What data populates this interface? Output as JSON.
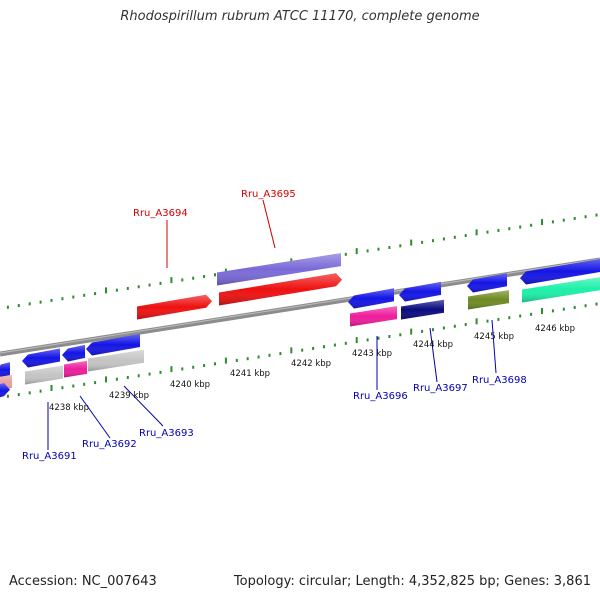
{
  "title": "Rhodospirillum rubrum ATCC 11170, complete genome",
  "footer": {
    "accession": "Accession: NC_007643",
    "summary": "Topology: circular; Length: 4,352,825 bp; Genes: 3,861"
  },
  "colors": {
    "backbone": "#8c8c8c",
    "tick": "#2e8b2e",
    "label_top": "#d40000",
    "label_bottom": "#0000b4",
    "blue": "#1414e6",
    "red": "#ee1010",
    "purple": "#7a6ad8",
    "gray": "#c4c4c4",
    "pink": "#ee1c9c",
    "navy": "#0a0a80",
    "olive": "#6e8a22",
    "mint": "#1cf0a8"
  },
  "kbp_labels": [
    "4238 kbp",
    "4239 kbp",
    "4240 kbp",
    "4241 kbp",
    "4242 kbp",
    "4243 kbp",
    "4244 kbp",
    "4245 kbp",
    "4246 kbp"
  ],
  "gene_labels_top": [
    "Rru_A3694",
    "Rru_A3695"
  ],
  "gene_labels_bottom": [
    "Rru_A3691",
    "Rru_A3692",
    "Rru_A3693",
    "Rru_A3696",
    "Rru_A3697",
    "Rru_A3698"
  ]
}
